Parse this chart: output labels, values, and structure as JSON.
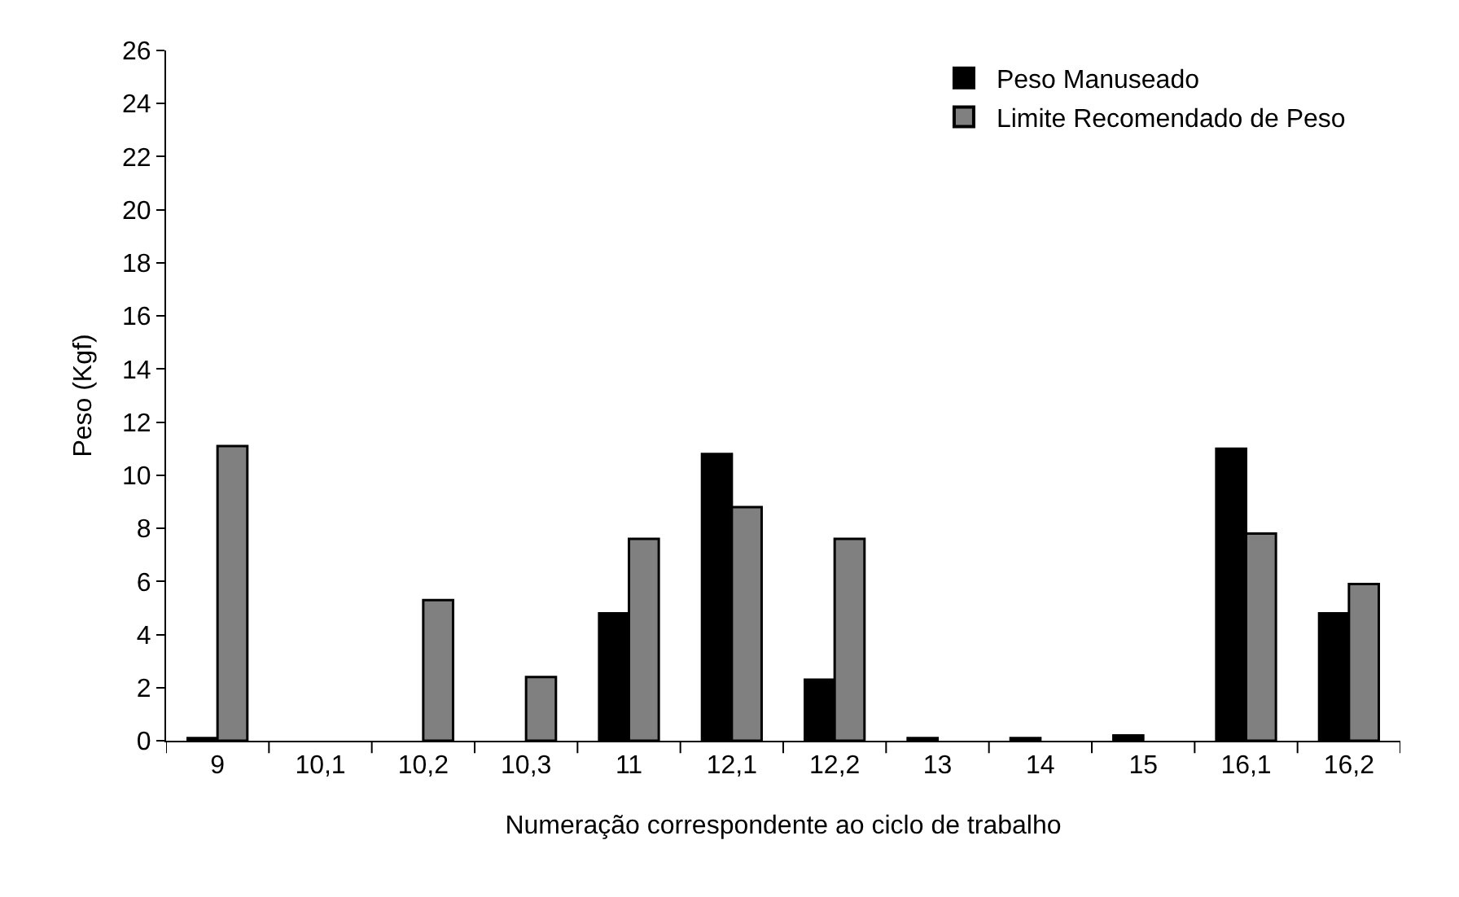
{
  "chart_data": {
    "type": "bar",
    "xlabel": "Numeração correspondente ao ciclo de trabalho",
    "ylabel": "Peso (Kgf)",
    "categories": [
      "9",
      "10,1",
      "10,2",
      "10,3",
      "11",
      "12,1",
      "12,2",
      "13",
      "14",
      "15",
      "16,1",
      "16,2"
    ],
    "series": [
      {
        "name": "Peso Manuseado",
        "color": "#000000",
        "values": [
          0.1,
          null,
          null,
          null,
          4.8,
          10.8,
          2.3,
          0.1,
          0.1,
          0.2,
          11.0,
          4.8
        ]
      },
      {
        "name": "Limite Recomendado de Peso",
        "color": "#808080",
        "values": [
          11.1,
          null,
          5.3,
          2.4,
          7.6,
          8.8,
          7.6,
          null,
          null,
          null,
          7.8,
          5.9
        ]
      }
    ],
    "ylim": [
      0,
      26
    ],
    "yticks": [
      0,
      2,
      4,
      6,
      8,
      10,
      12,
      14,
      16,
      18,
      20,
      22,
      24,
      26
    ],
    "grid": false,
    "legend": "top right"
  }
}
